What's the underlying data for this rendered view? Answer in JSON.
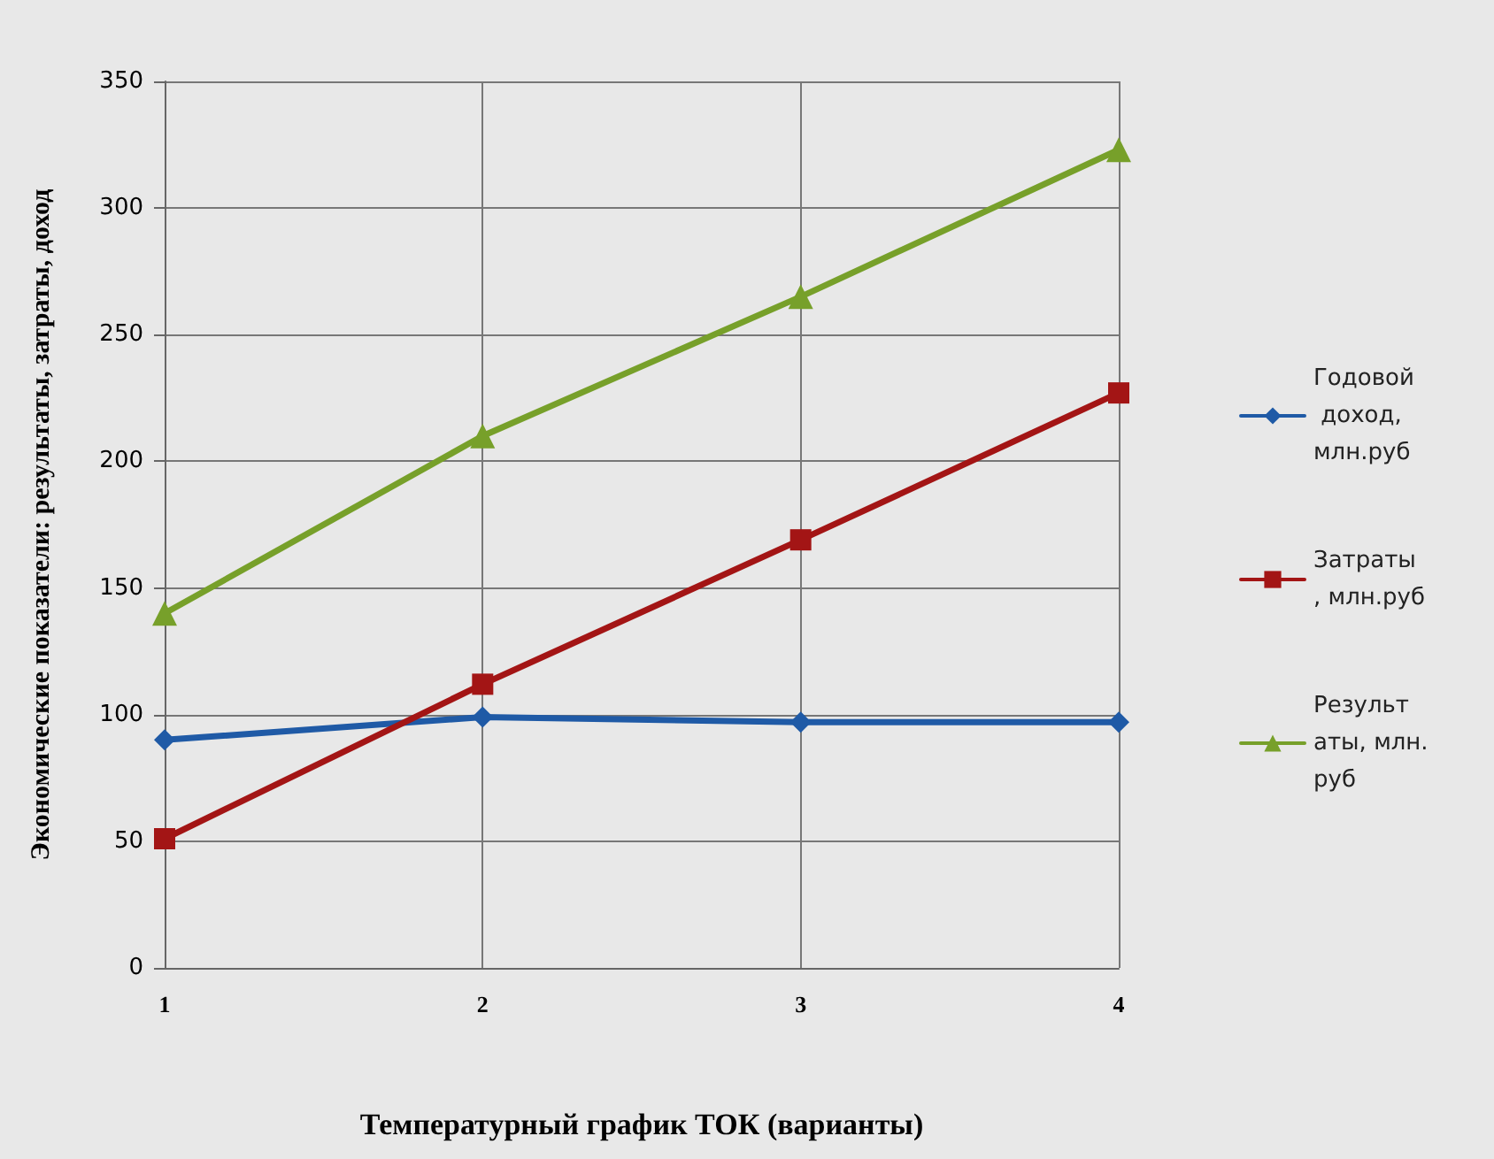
{
  "chart_data": {
    "type": "line",
    "xlabel": "Температурный график ТОК (варианты)",
    "ylabel": "Экономические показатели: результаты, затраты, доход",
    "categories": [
      "1",
      "2",
      "3",
      "4"
    ],
    "series": [
      {
        "name": "Годовой доход, млн.руб",
        "color": "#1f5aa6",
        "marker": "diamond",
        "values": [
          90,
          99,
          97,
          97
        ]
      },
      {
        "name": "Затраты, млн.руб",
        "color": "#a31515",
        "marker": "square",
        "values": [
          51,
          112,
          169,
          227
        ]
      },
      {
        "name": "Результаты, млн. руб",
        "color": "#77a02a",
        "marker": "triangle",
        "values": [
          140,
          210,
          265,
          323
        ]
      }
    ],
    "ylim": [
      0,
      350
    ],
    "yticks": [
      0,
      50,
      100,
      150,
      200,
      250,
      300,
      350
    ],
    "grid": true,
    "legend": "right",
    "line_style": "solid"
  }
}
